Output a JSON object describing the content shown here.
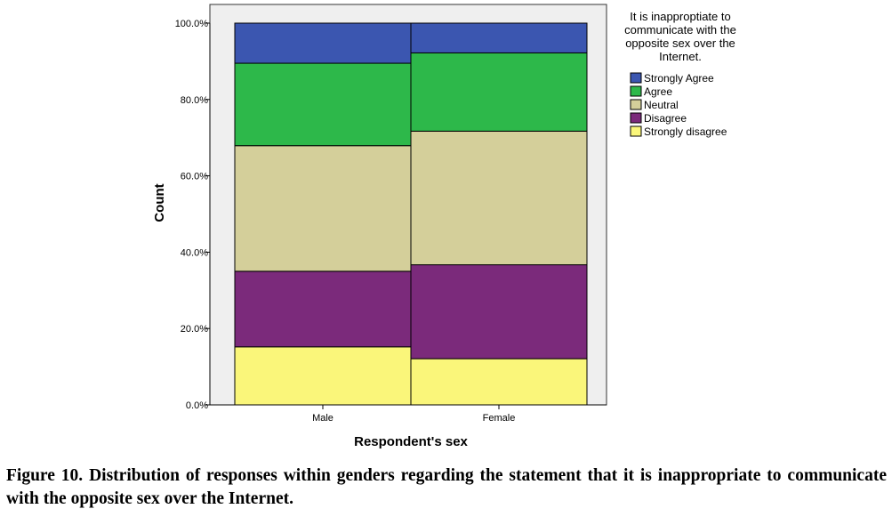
{
  "chart_data": {
    "type": "bar",
    "stacked": true,
    "percent": true,
    "categories": [
      "Male",
      "Female"
    ],
    "series": [
      {
        "name": "Strongly disagree",
        "color": "#FAF67A",
        "values": [
          15.2,
          12.1
        ]
      },
      {
        "name": "Disagree",
        "color": "#7B2A7B",
        "values": [
          19.8,
          24.6
        ]
      },
      {
        "name": "Neutral",
        "color": "#D4CF9A",
        "values": [
          32.9,
          35.0
        ]
      },
      {
        "name": "Agree",
        "color": "#2DB84A",
        "values": [
          21.6,
          20.5
        ]
      },
      {
        "name": "Strongly Agree",
        "color": "#3B56B0",
        "values": [
          10.5,
          7.8
        ]
      }
    ],
    "xlabel": "Respondent's sex",
    "ylabel": "Count",
    "ylim": [
      0,
      100
    ],
    "yticks": [
      "0.0%",
      "20.0%",
      "40.0%",
      "60.0%",
      "80.0%",
      "100.0%"
    ],
    "legend": {
      "title_lines": [
        "It is inapproptiate to",
        "communicate with the",
        "opposite sex over the",
        "Internet."
      ],
      "placement": "top-right outside",
      "entries": [
        "Strongly Agree",
        "Agree",
        "Neutral",
        "Disagree",
        "Strongly disagree"
      ]
    },
    "plot_background": "#EFEFEF",
    "grid": false
  },
  "caption": "Figure 10. Distribution of responses within genders regarding the statement that it is inappropriate to communicate with the opposite sex over the Internet."
}
